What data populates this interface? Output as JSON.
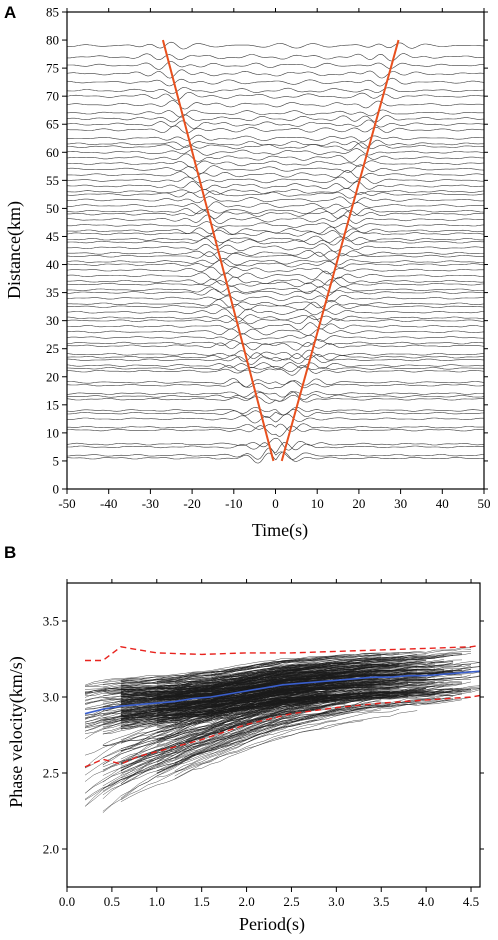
{
  "panels": {
    "a": {
      "label": "A"
    },
    "b": {
      "label": "B"
    }
  },
  "chart_data": [
    {
      "type": "line",
      "panel": "A",
      "xlabel": "Time(s)",
      "ylabel": "Distance(km)",
      "xlim": [
        -50,
        50
      ],
      "ylim": [
        0,
        85
      ],
      "x_ticks": [
        "-50",
        "-40",
        "-30",
        "-20",
        "-10",
        "0",
        "10",
        "20",
        "30",
        "40",
        "50"
      ],
      "y_ticks": [
        "0",
        "5",
        "10",
        "15",
        "20",
        "25",
        "30",
        "35",
        "40",
        "45",
        "50",
        "55",
        "60",
        "65",
        "70",
        "75",
        "80",
        "85"
      ],
      "colors": {
        "waveform": "#3a3a3a",
        "moveout": "#e8501e"
      },
      "description_series": {
        "waveforms": "cross-correlation waveforms, one trace per station-pair distance, stacked from about 5 km to 80 km",
        "trace_distances_km": [
          5.5,
          6.0,
          7.5,
          8.0,
          10.5,
          11.0,
          12.5,
          13.5,
          14.0,
          16.0,
          16.5,
          17.0,
          18.5,
          19.0,
          21.0,
          21.5,
          22.0,
          23.0,
          23.5,
          24.0,
          25.5,
          26.0,
          27.0,
          28.0,
          29.0,
          30.0,
          30.5,
          31.5,
          32.5,
          33.0,
          34.0,
          35.0,
          35.5,
          36.5,
          37.0,
          38.0,
          39.0,
          40.0,
          40.5,
          41.5,
          42.0,
          43.0,
          44.0,
          44.5,
          45.5,
          46.0,
          47.0,
          48.0,
          49.0,
          49.5,
          50.5,
          51.5,
          52.5,
          53.0,
          54.0,
          55.0,
          56.0,
          57.0,
          58.0,
          59.0,
          60.0,
          61.0,
          61.5,
          62.5,
          64.0,
          65.0,
          66.0,
          67.0,
          68.5,
          70.0,
          71.0,
          72.5,
          74.0,
          75.5,
          77.0,
          79.0
        ]
      },
      "series": [
        {
          "kind": "moveout",
          "x": [
            -27,
            -0.5
          ],
          "y": [
            80,
            5
          ]
        },
        {
          "kind": "moveout",
          "x": [
            1.5,
            29.5
          ],
          "y": [
            5,
            80
          ]
        }
      ]
    },
    {
      "type": "line",
      "panel": "B",
      "xlabel": "Period(s)",
      "ylabel": "Phase velocity(km/s)",
      "xlim": [
        0.0,
        4.6
      ],
      "ylim": [
        1.75,
        3.75
      ],
      "x_ticks": [
        "0.0",
        "0.5",
        "1.0",
        "1.5",
        "2.0",
        "2.5",
        "3.0",
        "3.5",
        "4.0",
        "4.5"
      ],
      "y_ticks": [
        "2.0",
        "2.5",
        "3.0",
        "3.5"
      ],
      "colors": {
        "dispersion": "#1a1a1a",
        "mean": "#3a5fcd",
        "bounds": "#e8231e"
      },
      "series": [
        {
          "kind": "mean",
          "x": [
            0.2,
            0.4,
            0.6,
            0.8,
            1.0,
            1.2,
            1.4,
            1.6,
            1.8,
            2.0,
            2.2,
            2.4,
            2.6,
            2.8,
            3.0,
            3.2,
            3.4,
            3.6,
            3.8,
            4.0,
            4.2,
            4.4,
            4.6
          ],
          "y": [
            2.89,
            2.92,
            2.94,
            2.95,
            2.96,
            2.97,
            2.99,
            3.0,
            3.02,
            3.04,
            3.06,
            3.08,
            3.09,
            3.1,
            3.11,
            3.12,
            3.13,
            3.13,
            3.14,
            3.14,
            3.15,
            3.16,
            3.17
          ]
        },
        {
          "kind": "upper-bound",
          "x": [
            0.2,
            0.4,
            0.6,
            0.8,
            1.0,
            1.5,
            2.0,
            2.5,
            3.0,
            3.5,
            4.0,
            4.5,
            4.6
          ],
          "y": [
            3.24,
            3.24,
            3.33,
            3.31,
            3.29,
            3.28,
            3.29,
            3.29,
            3.3,
            3.31,
            3.32,
            3.33,
            3.34
          ]
        },
        {
          "kind": "lower-bound",
          "x": [
            0.2,
            0.4,
            0.6,
            0.8,
            1.0,
            1.5,
            2.0,
            2.5,
            3.0,
            3.5,
            4.0,
            4.5,
            4.6
          ],
          "y": [
            2.54,
            2.59,
            2.56,
            2.61,
            2.64,
            2.72,
            2.82,
            2.89,
            2.93,
            2.96,
            2.98,
            3.0,
            3.01
          ]
        }
      ]
    }
  ]
}
